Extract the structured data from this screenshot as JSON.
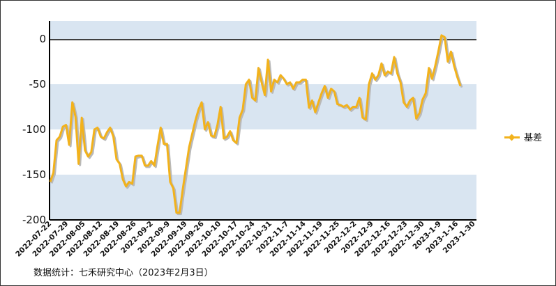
{
  "source_note": "数据统计：七禾研究中心（2023年2月3日）",
  "legend": {
    "label": "基差"
  },
  "colors": {
    "line": "#f2b21c",
    "shadow": "#b9b9b9",
    "band": "#d9e5f1",
    "axis": "#000000"
  },
  "chart_data": {
    "type": "line",
    "title": "",
    "xlabel": "",
    "ylabel": "",
    "ylim": [
      -200,
      20
    ],
    "yticks": [
      0,
      -50,
      -100,
      -150,
      -200
    ],
    "grid": false,
    "legend_position": "right",
    "xtick_labels": [
      "2022-07-22",
      "2022-07-29",
      "2022-08-05",
      "2022-08-12",
      "2022-08-19",
      "2022-08-26",
      "2022-09-2",
      "2022-09-9",
      "2022-09-19",
      "2022-09-26",
      "2022-10-10",
      "2022-10-17",
      "2022-10-24",
      "2022-10-31",
      "2022-11-7",
      "2022-11-14",
      "2022-11-19",
      "2022-11-25",
      "2022-12-2",
      "2022-12-9",
      "2022-12-16",
      "2022-12-23",
      "2022-12-30",
      "2023-1-9",
      "2023-1-16",
      "2023-1-30"
    ],
    "series": [
      {
        "name": "基差",
        "values": [
          -158,
          -148,
          -112,
          -108,
          -97,
          -95,
          -117,
          -70,
          -86,
          -138,
          -87,
          -123,
          -130,
          -125,
          -100,
          -98,
          -108,
          -110,
          -103,
          -98,
          -108,
          -133,
          -138,
          -155,
          -163,
          -158,
          -160,
          -130,
          -129,
          -129,
          -140,
          -140,
          -135,
          -140,
          -118,
          -98,
          -116,
          -116,
          -158,
          -165,
          -192,
          -192,
          -166,
          -143,
          -120,
          -105,
          -90,
          -78,
          -70,
          -100,
          -92,
          -107,
          -108,
          -95,
          -75,
          -110,
          -108,
          -102,
          -112,
          -115,
          -87,
          -78,
          -50,
          -45,
          -65,
          -68,
          -32,
          -48,
          -62,
          -23,
          -58,
          -45,
          -48,
          -40,
          -44,
          -50,
          -48,
          -55,
          -48,
          -48,
          -45,
          -45,
          -76,
          -68,
          -81,
          -70,
          -60,
          -52,
          -65,
          -55,
          -58,
          -72,
          -73,
          -75,
          -73,
          -78,
          -75,
          -75,
          -65,
          -87,
          -89,
          -50,
          -38,
          -45,
          -40,
          -27,
          -40,
          -36,
          -38,
          -20,
          -38,
          -48,
          -70,
          -75,
          -68,
          -65,
          -88,
          -82,
          -67,
          -60,
          -32,
          -44,
          -30,
          -14,
          4,
          2,
          -25,
          -14,
          -30,
          -42,
          -52
        ]
      }
    ]
  }
}
